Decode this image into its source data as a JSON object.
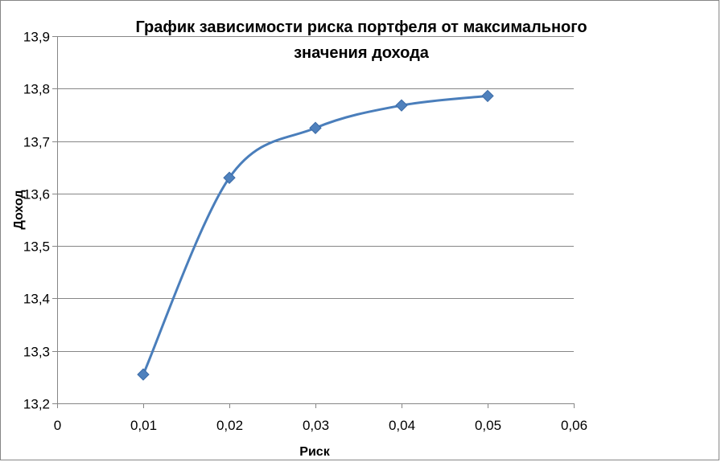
{
  "chart_data": {
    "type": "line",
    "title_lines": [
      "График зависимости риска портфеля от максимального",
      "значения дохода"
    ],
    "xlabel": "Риск",
    "ylabel": "Доход",
    "x": [
      0.01,
      0.02,
      0.03,
      0.04,
      0.05
    ],
    "y": [
      13.255,
      13.63,
      13.725,
      13.768,
      13.786
    ],
    "xlim": [
      0,
      0.06
    ],
    "ylim": [
      13.2,
      13.9
    ],
    "x_ticks": [
      0,
      0.01,
      0.02,
      0.03,
      0.04,
      0.05,
      0.06
    ],
    "x_tick_labels": [
      "0",
      "0,01",
      "0,02",
      "0,03",
      "0,04",
      "0,05",
      "0,06"
    ],
    "y_ticks": [
      13.2,
      13.3,
      13.4,
      13.5,
      13.6,
      13.7,
      13.8,
      13.9
    ],
    "y_tick_labels": [
      "13,2",
      "13,3",
      "13,4",
      "13,5",
      "13,6",
      "13,7",
      "13,8",
      "13,9"
    ],
    "smooth": true,
    "marker": "diamond",
    "grid": "horizontal",
    "legend": "none",
    "line_color": "#4a7ebb",
    "marker_color": "#4f81bd"
  }
}
